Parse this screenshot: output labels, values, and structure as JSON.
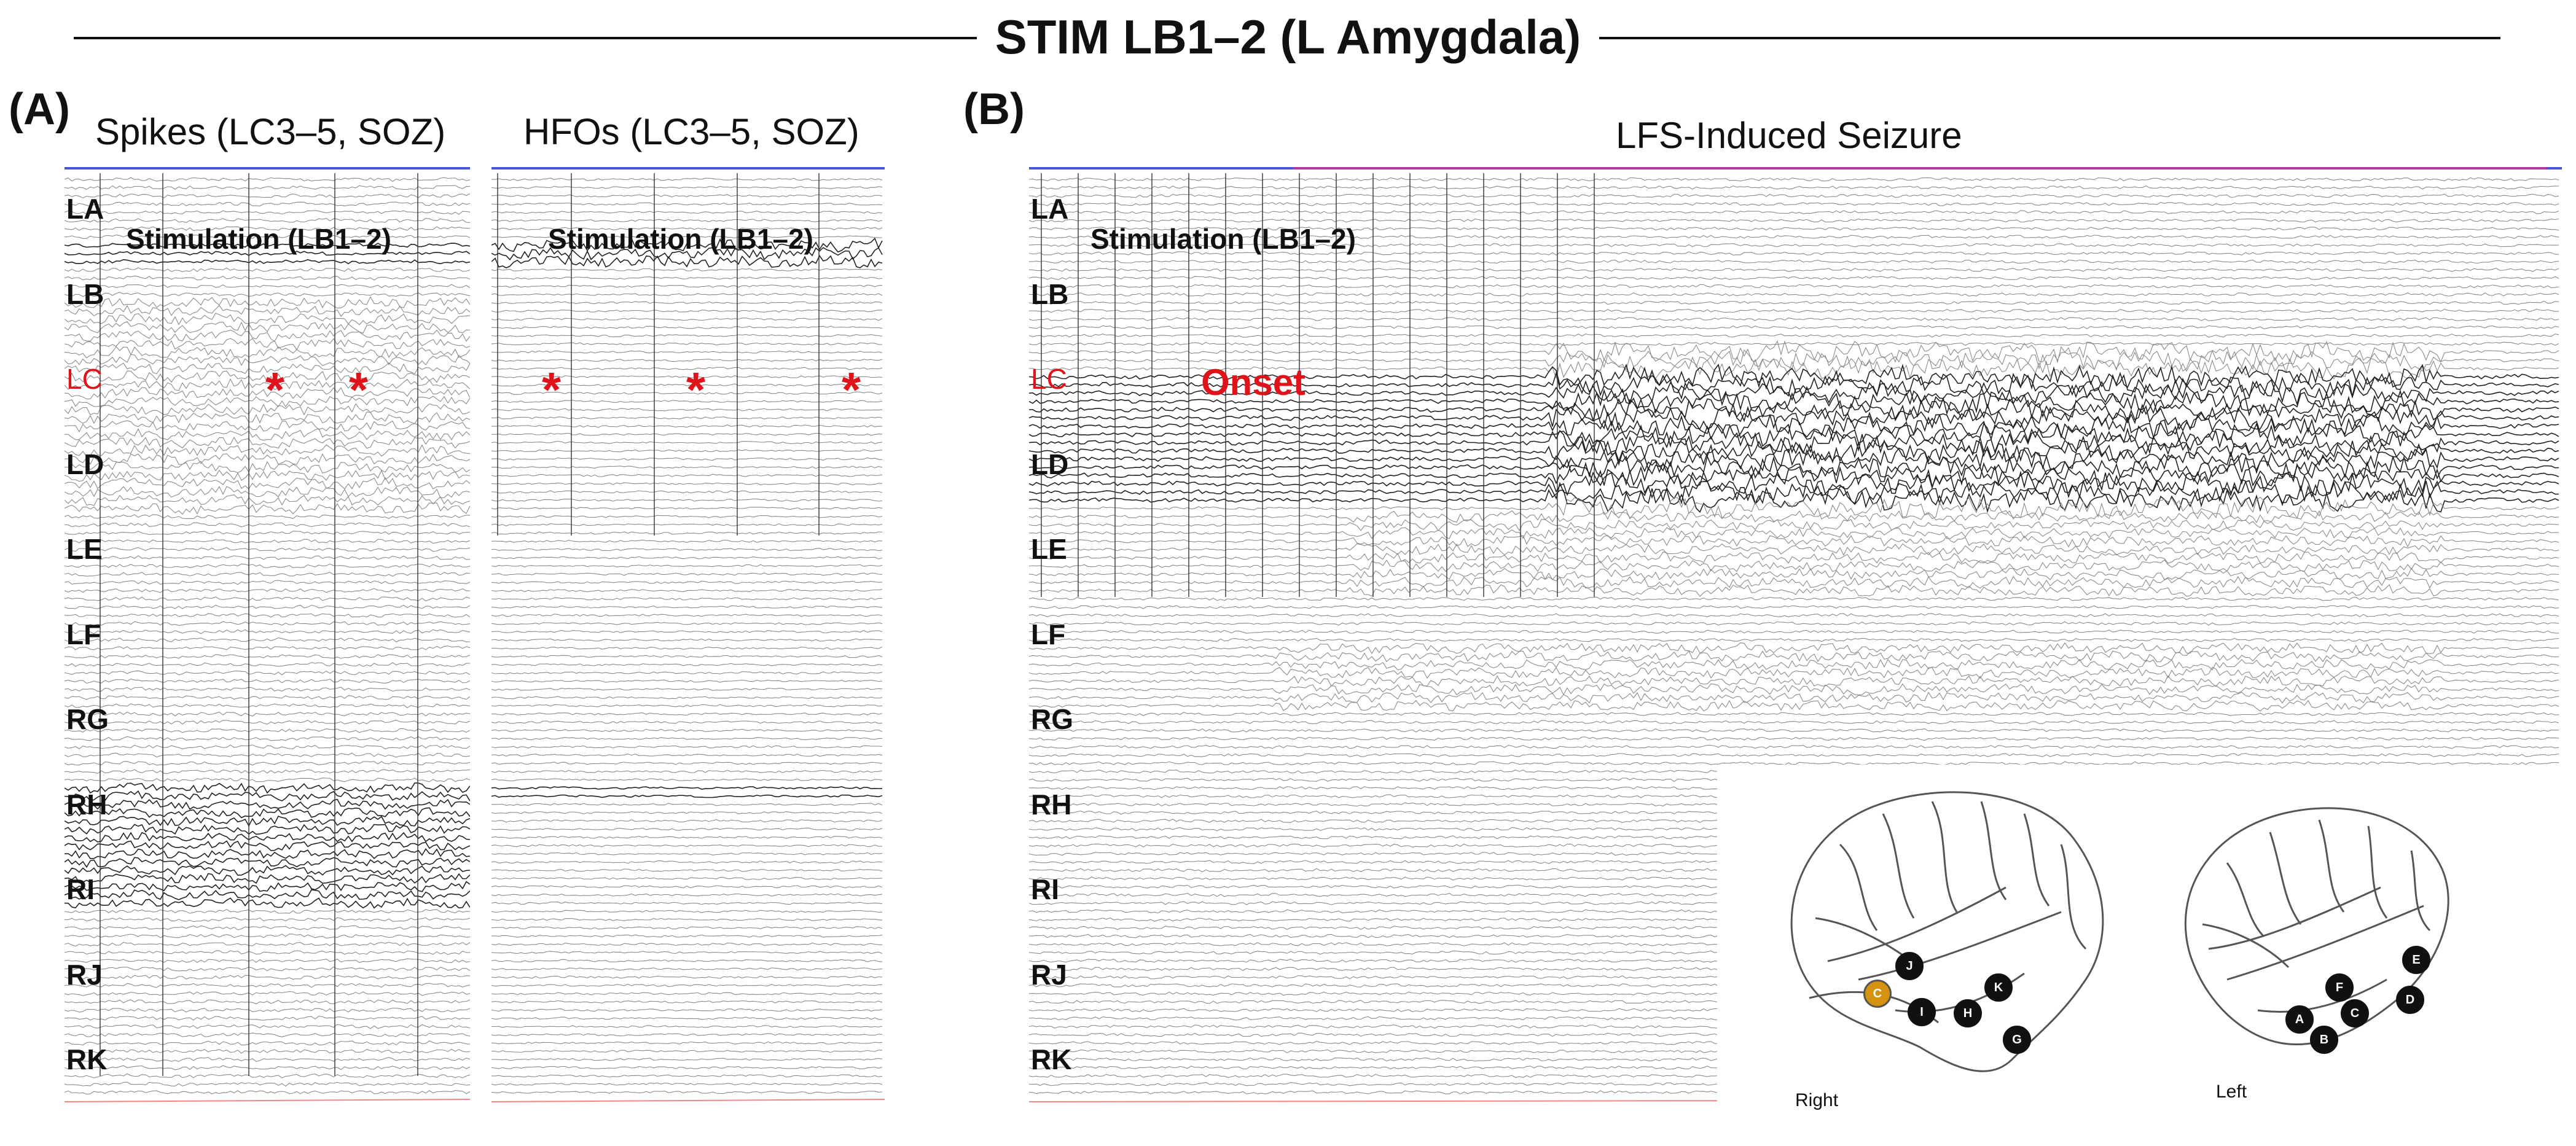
{
  "title": "STIM LB1–2 (L Amygdala)",
  "panel_a": {
    "letter": "(A)",
    "spikes": {
      "subtitle": "Spikes (LC3–5, SOZ)",
      "stim_label": "Stimulation (LB1–2)",
      "markers": [
        "*",
        "*"
      ]
    },
    "hfos": {
      "subtitle": "HFOs (LC3–5, SOZ)",
      "stim_label": "Stimulation (LB1–2)",
      "markers": [
        "*",
        "*",
        "*"
      ]
    }
  },
  "panel_b": {
    "letter": "(B)",
    "subtitle": "LFS-Induced Seizure",
    "stim_label": "Stimulation (LB1–2)",
    "onset_label": "Onset",
    "brain": {
      "right_label": "Right",
      "left_label": "Left",
      "right_electrodes": [
        "J",
        "K",
        "I",
        "H",
        "G"
      ],
      "right_highlight": "C",
      "left_electrodes": [
        "E",
        "F",
        "D",
        "C",
        "A",
        "B"
      ]
    }
  },
  "channels": [
    "LA",
    "LB",
    "LC",
    "LD",
    "LE",
    "LF",
    "RG",
    "RH",
    "RI",
    "RJ",
    "RK"
  ],
  "soz_channel": "LC",
  "colors": {
    "soz": "#e0131b",
    "trace": "#555555",
    "top_bar": "#4a55d6",
    "seizure_bar": "#b03a9a",
    "highlight_electrode": "#d4920e"
  }
}
